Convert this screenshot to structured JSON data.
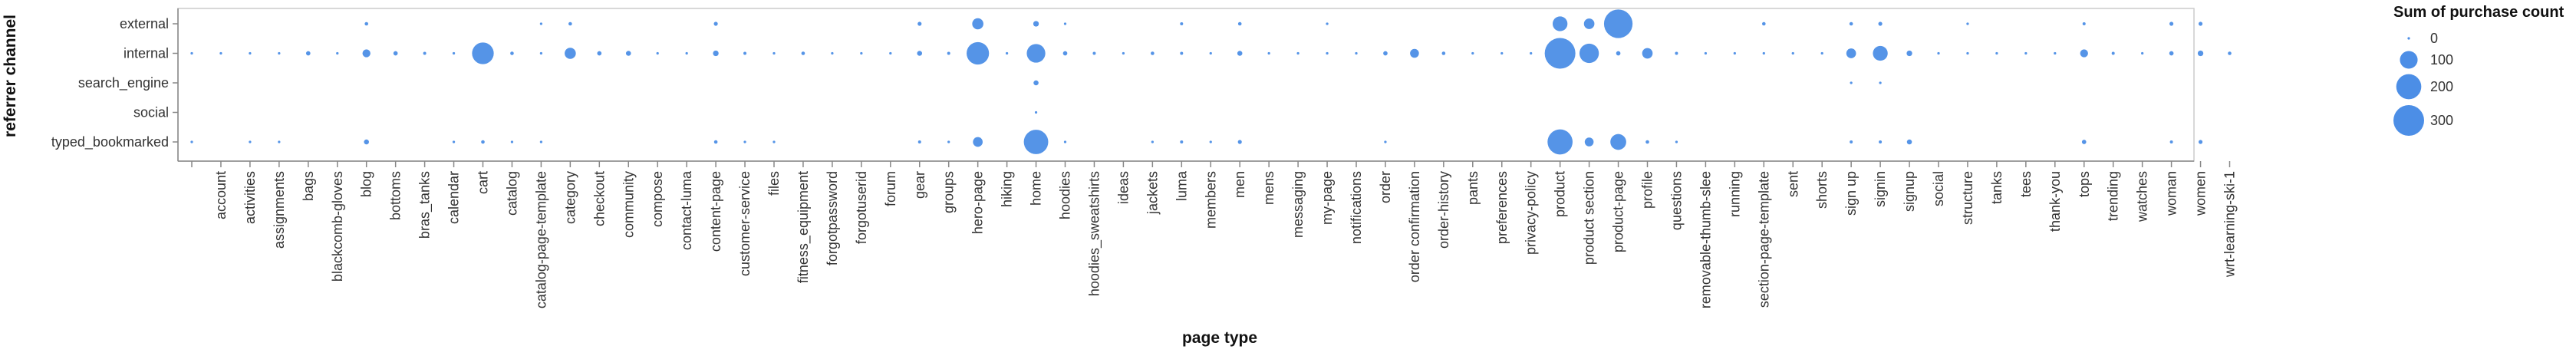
{
  "chart_data": {
    "type": "scatter",
    "title": "",
    "xlabel": "page type",
    "ylabel": "referrer channel",
    "grid": false,
    "legend_placement": "right",
    "size_field": "Sum of purchase count",
    "marker_color": "#4c8ee6",
    "axis_color": "#888888",
    "categories_x": [
      " ",
      "account",
      "activities",
      "assignments",
      "bags",
      "blackcomb-gloves",
      "blog",
      "bottoms",
      "bras_tanks",
      "calendar",
      "cart",
      "catalog",
      "catalog-page-template",
      "category",
      "checkout",
      "community",
      "compose",
      "contact-luma",
      "content-page",
      "customer-service",
      "files",
      "fitness_equipment",
      "forgotpassword",
      "forgotuserid",
      "forum",
      "gear",
      "groups",
      "hero-page",
      "hiking",
      "home",
      "hoodies",
      "hoodies_sweatshirts",
      "ideas",
      "jackets",
      "luma",
      "members",
      "men",
      "mens",
      "messaging",
      "my-page",
      "notifications",
      "order",
      "order confirmation",
      "order-history",
      "pants",
      "preferences",
      "privacy-policy",
      "product",
      "product section",
      "product-page",
      "profile",
      "questions",
      "removable-thumb-slee",
      "running",
      "section-page-template",
      "sent",
      "shorts",
      "sign up",
      "signin",
      "signup",
      "social",
      "structure",
      "tanks",
      "tees",
      "thank-you",
      "tops",
      "trending",
      "watches",
      "woman",
      "women",
      "wrt-learning-ski-1"
    ],
    "categories_y": [
      "external",
      "internal",
      "search_engine",
      "social",
      "typed_bookmarked"
    ],
    "legend": {
      "title": "Sum of purchase count",
      "values": [
        0,
        100,
        200,
        300
      ],
      "labels": [
        "0",
        "100",
        "200",
        "300"
      ]
    },
    "points": [
      {
        "x": "blog",
        "y": "external",
        "value": 4
      },
      {
        "x": "catalog-page-template",
        "y": "external",
        "value": 2
      },
      {
        "x": "category",
        "y": "external",
        "value": 4
      },
      {
        "x": "content-page",
        "y": "external",
        "value": 5
      },
      {
        "x": "gear",
        "y": "external",
        "value": 5
      },
      {
        "x": "hero-page",
        "y": "external",
        "value": 40
      },
      {
        "x": "home",
        "y": "external",
        "value": 10
      },
      {
        "x": "hoodies",
        "y": "external",
        "value": 2
      },
      {
        "x": "luma",
        "y": "external",
        "value": 3
      },
      {
        "x": "men",
        "y": "external",
        "value": 4
      },
      {
        "x": "my-page",
        "y": "external",
        "value": 2
      },
      {
        "x": "product",
        "y": "external",
        "value": 70
      },
      {
        "x": "product section",
        "y": "external",
        "value": 35
      },
      {
        "x": "product-page",
        "y": "external",
        "value": 260
      },
      {
        "x": "section-page-template",
        "y": "external",
        "value": 4
      },
      {
        "x": "sign up",
        "y": "external",
        "value": 4
      },
      {
        "x": "signin",
        "y": "external",
        "value": 5
      },
      {
        "x": "structure",
        "y": "external",
        "value": 2
      },
      {
        "x": "tops",
        "y": "external",
        "value": 3
      },
      {
        "x": "woman",
        "y": "external",
        "value": 5
      },
      {
        "x": "women",
        "y": "external",
        "value": 5
      },
      {
        "x": " ",
        "y": "internal",
        "value": 2
      },
      {
        "x": "account",
        "y": "internal",
        "value": 2
      },
      {
        "x": "activities",
        "y": "internal",
        "value": 2
      },
      {
        "x": "assignments",
        "y": "internal",
        "value": 2
      },
      {
        "x": "bags",
        "y": "internal",
        "value": 6
      },
      {
        "x": "blackcomb-gloves",
        "y": "internal",
        "value": 2
      },
      {
        "x": "blog",
        "y": "internal",
        "value": 20
      },
      {
        "x": "bottoms",
        "y": "internal",
        "value": 6
      },
      {
        "x": "bras_tanks",
        "y": "internal",
        "value": 3
      },
      {
        "x": "calendar",
        "y": "internal",
        "value": 2
      },
      {
        "x": "cart",
        "y": "internal",
        "value": 150
      },
      {
        "x": "catalog",
        "y": "internal",
        "value": 4
      },
      {
        "x": "catalog-page-template",
        "y": "internal",
        "value": 2
      },
      {
        "x": "category",
        "y": "internal",
        "value": 40
      },
      {
        "x": "checkout",
        "y": "internal",
        "value": 6
      },
      {
        "x": "community",
        "y": "internal",
        "value": 8
      },
      {
        "x": "compose",
        "y": "internal",
        "value": 2
      },
      {
        "x": "contact-luma",
        "y": "internal",
        "value": 2
      },
      {
        "x": "content-page",
        "y": "internal",
        "value": 10
      },
      {
        "x": "customer-service",
        "y": "internal",
        "value": 3
      },
      {
        "x": "files",
        "y": "internal",
        "value": 2
      },
      {
        "x": "fitness_equipment",
        "y": "internal",
        "value": 4
      },
      {
        "x": "forgotpassword",
        "y": "internal",
        "value": 2
      },
      {
        "x": "forgotuserid",
        "y": "internal",
        "value": 2
      },
      {
        "x": "forum",
        "y": "internal",
        "value": 2
      },
      {
        "x": "gear",
        "y": "internal",
        "value": 8
      },
      {
        "x": "groups",
        "y": "internal",
        "value": 3
      },
      {
        "x": "hero-page",
        "y": "internal",
        "value": 160
      },
      {
        "x": "hiking",
        "y": "internal",
        "value": 2
      },
      {
        "x": "home",
        "y": "internal",
        "value": 110
      },
      {
        "x": "hoodies",
        "y": "internal",
        "value": 6
      },
      {
        "x": "hoodies_sweatshirts",
        "y": "internal",
        "value": 3
      },
      {
        "x": "ideas",
        "y": "internal",
        "value": 2
      },
      {
        "x": "jackets",
        "y": "internal",
        "value": 4
      },
      {
        "x": "luma",
        "y": "internal",
        "value": 3
      },
      {
        "x": "members",
        "y": "internal",
        "value": 2
      },
      {
        "x": "men",
        "y": "internal",
        "value": 8
      },
      {
        "x": "mens",
        "y": "internal",
        "value": 2
      },
      {
        "x": "messaging",
        "y": "internal",
        "value": 2
      },
      {
        "x": "my-page",
        "y": "internal",
        "value": 2
      },
      {
        "x": "notifications",
        "y": "internal",
        "value": 2
      },
      {
        "x": "order",
        "y": "internal",
        "value": 6
      },
      {
        "x": "order confirmation",
        "y": "internal",
        "value": 25
      },
      {
        "x": "order-history",
        "y": "internal",
        "value": 4
      },
      {
        "x": "pants",
        "y": "internal",
        "value": 2
      },
      {
        "x": "preferences",
        "y": "internal",
        "value": 2
      },
      {
        "x": "privacy-policy",
        "y": "internal",
        "value": 2
      },
      {
        "x": "product",
        "y": "internal",
        "value": 300
      },
      {
        "x": "product section",
        "y": "internal",
        "value": 120
      },
      {
        "x": "product-page",
        "y": "internal",
        "value": 6
      },
      {
        "x": "profile",
        "y": "internal",
        "value": 35
      },
      {
        "x": "questions",
        "y": "internal",
        "value": 3
      },
      {
        "x": "removable-thumb-slee",
        "y": "internal",
        "value": 2
      },
      {
        "x": "running",
        "y": "internal",
        "value": 2
      },
      {
        "x": "section-page-template",
        "y": "internal",
        "value": 2
      },
      {
        "x": "sent",
        "y": "internal",
        "value": 2
      },
      {
        "x": "shorts",
        "y": "internal",
        "value": 2
      },
      {
        "x": "sign up",
        "y": "internal",
        "value": 30
      },
      {
        "x": "signin",
        "y": "internal",
        "value": 70
      },
      {
        "x": "signup",
        "y": "internal",
        "value": 10
      },
      {
        "x": "social",
        "y": "internal",
        "value": 2
      },
      {
        "x": "structure",
        "y": "internal",
        "value": 2
      },
      {
        "x": "tanks",
        "y": "internal",
        "value": 2
      },
      {
        "x": "tees",
        "y": "internal",
        "value": 2
      },
      {
        "x": "thank-you",
        "y": "internal",
        "value": 2
      },
      {
        "x": "tops",
        "y": "internal",
        "value": 20
      },
      {
        "x": "trending",
        "y": "internal",
        "value": 3
      },
      {
        "x": "watches",
        "y": "internal",
        "value": 2
      },
      {
        "x": "woman",
        "y": "internal",
        "value": 6
      },
      {
        "x": "women",
        "y": "internal",
        "value": 10
      },
      {
        "x": "wrt-learning-ski-1",
        "y": "internal",
        "value": 4
      },
      {
        "x": "home",
        "y": "search_engine",
        "value": 8
      },
      {
        "x": "sign up",
        "y": "search_engine",
        "value": 2
      },
      {
        "x": "signin",
        "y": "search_engine",
        "value": 2
      },
      {
        "x": "home",
        "y": "social",
        "value": 1
      },
      {
        "x": " ",
        "y": "typed_bookmarked",
        "value": 2
      },
      {
        "x": "activities",
        "y": "typed_bookmarked",
        "value": 2
      },
      {
        "x": "assignments",
        "y": "typed_bookmarked",
        "value": 2
      },
      {
        "x": "blog",
        "y": "typed_bookmarked",
        "value": 8
      },
      {
        "x": "calendar",
        "y": "typed_bookmarked",
        "value": 2
      },
      {
        "x": "cart",
        "y": "typed_bookmarked",
        "value": 4
      },
      {
        "x": "catalog",
        "y": "typed_bookmarked",
        "value": 2
      },
      {
        "x": "catalog-page-template",
        "y": "typed_bookmarked",
        "value": 2
      },
      {
        "x": "content-page",
        "y": "typed_bookmarked",
        "value": 4
      },
      {
        "x": "customer-service",
        "y": "typed_bookmarked",
        "value": 2
      },
      {
        "x": "files",
        "y": "typed_bookmarked",
        "value": 2
      },
      {
        "x": "gear",
        "y": "typed_bookmarked",
        "value": 3
      },
      {
        "x": "groups",
        "y": "typed_bookmarked",
        "value": 2
      },
      {
        "x": "hero-page",
        "y": "typed_bookmarked",
        "value": 30
      },
      {
        "x": "home",
        "y": "typed_bookmarked",
        "value": 190
      },
      {
        "x": "hoodies",
        "y": "typed_bookmarked",
        "value": 2
      },
      {
        "x": "jackets",
        "y": "typed_bookmarked",
        "value": 2
      },
      {
        "x": "luma",
        "y": "typed_bookmarked",
        "value": 3
      },
      {
        "x": "members",
        "y": "typed_bookmarked",
        "value": 2
      },
      {
        "x": "men",
        "y": "typed_bookmarked",
        "value": 5
      },
      {
        "x": "order",
        "y": "typed_bookmarked",
        "value": 2
      },
      {
        "x": "product",
        "y": "typed_bookmarked",
        "value": 200
      },
      {
        "x": "product section",
        "y": "typed_bookmarked",
        "value": 25
      },
      {
        "x": "product-page",
        "y": "typed_bookmarked",
        "value": 80
      },
      {
        "x": "profile",
        "y": "typed_bookmarked",
        "value": 4
      },
      {
        "x": "questions",
        "y": "typed_bookmarked",
        "value": 2
      },
      {
        "x": "sign up",
        "y": "typed_bookmarked",
        "value": 3
      },
      {
        "x": "signin",
        "y": "typed_bookmarked",
        "value": 3
      },
      {
        "x": "signup",
        "y": "typed_bookmarked",
        "value": 8
      },
      {
        "x": "tops",
        "y": "typed_bookmarked",
        "value": 6
      },
      {
        "x": "woman",
        "y": "typed_bookmarked",
        "value": 3
      },
      {
        "x": "women",
        "y": "typed_bookmarked",
        "value": 5
      }
    ]
  }
}
